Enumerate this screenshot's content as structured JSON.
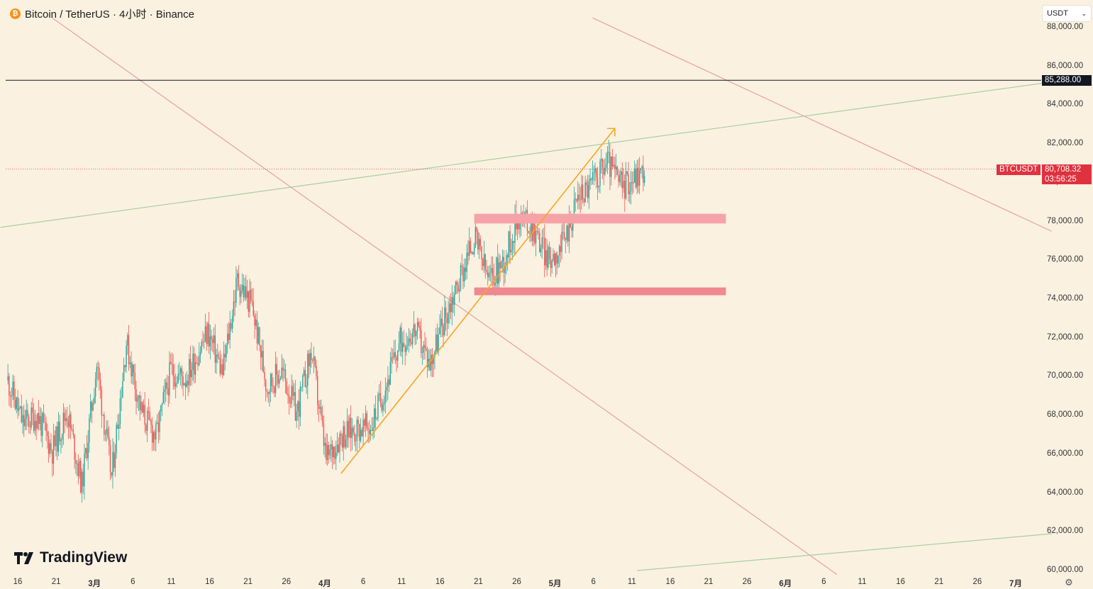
{
  "header": {
    "coin_symbol": "₿",
    "title": "Bitcoin / TetherUS · 4小时 · Binance"
  },
  "currency_selector": {
    "value": "USDT",
    "icon": "chevron-down-icon"
  },
  "branding": {
    "name": "TradingView",
    "icon": "tradingview-logo-icon"
  },
  "settings_icon": "gear-icon",
  "colors": {
    "background": "#fbf1e1",
    "up_candle": "#26a69a",
    "down_candle": "#ef5350",
    "trendline_red": "#e8a0a0",
    "trendline_green": "#a8cf9f",
    "arrow_orange": "#f5a623",
    "zone_light": "#f6a3a8",
    "zone_dark": "#f08890",
    "price_tag_red": "#e0313f"
  },
  "chart_data": {
    "type": "candlestick",
    "symbol": "BTCUSDT",
    "timeframe": "4小时",
    "exchange": "Binance",
    "ylim": [
      60000,
      88000
    ],
    "y_ticks": [
      "88,000.00",
      "86,000.00",
      "84,000.00",
      "82,000.00",
      "80,000.00",
      "78,000.00",
      "76,000.00",
      "74,000.00",
      "72,000.00",
      "70,000.00",
      "68,000.00",
      "66,000.00",
      "64,000.00",
      "62,000.00",
      "60,000.00"
    ],
    "x_ticks": [
      "16",
      "21",
      "3月",
      "6",
      "11",
      "16",
      "21",
      "26",
      "4月",
      "6",
      "11",
      "16",
      "21",
      "26",
      "5月",
      "6",
      "11",
      "16",
      "21",
      "26",
      "6月",
      "6",
      "11",
      "16",
      "21",
      "26",
      "7月"
    ],
    "price_path": [
      [
        "02-15",
        69800
      ],
      [
        "02-17",
        67600
      ],
      [
        "02-19",
        68000
      ],
      [
        "02-21",
        66200
      ],
      [
        "02-23",
        68200
      ],
      [
        "02-25",
        64400
      ],
      [
        "02-27",
        70600
      ],
      [
        "02-29",
        64800
      ],
      [
        "03-02",
        71800
      ],
      [
        "03-04",
        68200
      ],
      [
        "03-06",
        66900
      ],
      [
        "03-08",
        70300
      ],
      [
        "03-10",
        69900
      ],
      [
        "03-13",
        72300
      ],
      [
        "03-15",
        70200
      ],
      [
        "03-17",
        75000
      ],
      [
        "03-19",
        73600
      ],
      [
        "03-21",
        69500
      ],
      [
        "03-23",
        70300
      ],
      [
        "03-25",
        68100
      ],
      [
        "03-27",
        71300
      ],
      [
        "03-29",
        65700
      ],
      [
        "03-31",
        67000
      ],
      [
        "04-02",
        67300
      ],
      [
        "04-04",
        67400
      ],
      [
        "04-06",
        69500
      ],
      [
        "04-08",
        71800
      ],
      [
        "04-10",
        72400
      ],
      [
        "04-12",
        70700
      ],
      [
        "04-14",
        73000
      ],
      [
        "04-16",
        75000
      ],
      [
        "04-18",
        77200
      ],
      [
        "04-20",
        74900
      ],
      [
        "04-22",
        76000
      ],
      [
        "04-24",
        78300
      ],
      [
        "04-26",
        77700
      ],
      [
        "04-28",
        76000
      ],
      [
        "04-30",
        76800
      ],
      [
        "05-02",
        79300
      ],
      [
        "05-04",
        80000
      ],
      [
        "05-06",
        81100
      ],
      [
        "05-08",
        79800
      ],
      [
        "05-10",
        80400
      ],
      [
        "05-11",
        80700
      ]
    ],
    "last_price": {
      "symbol_label": "BTCUSDT",
      "value": 80708.32,
      "value_label": "80,708.32",
      "countdown": "03:56:25"
    },
    "horizontal_line": {
      "value": 85288,
      "label": "85,288.00"
    },
    "zones": [
      {
        "from": "04-18",
        "to": "05-22",
        "low": 77900,
        "high": 78400
      },
      {
        "from": "04-18",
        "to": "05-22",
        "low": 74200,
        "high": 74600
      }
    ],
    "arrow": {
      "from": [
        "03-31",
        65000
      ],
      "to": [
        "05-07",
        82800
      ]
    },
    "trendlines": [
      {
        "color": "red",
        "from": [
          "02-21",
          88500
        ],
        "to": [
          "06-06",
          59800
        ]
      },
      {
        "color": "red",
        "from": [
          "05-04",
          88500
        ],
        "to": [
          "07-05",
          77500
        ]
      },
      {
        "color": "green",
        "from": [
          "02-14",
          77700
        ],
        "to": [
          "07-05",
          85200
        ]
      },
      {
        "color": "green",
        "from": [
          "05-10",
          60000
        ],
        "to": [
          "07-05",
          61900
        ]
      }
    ]
  }
}
